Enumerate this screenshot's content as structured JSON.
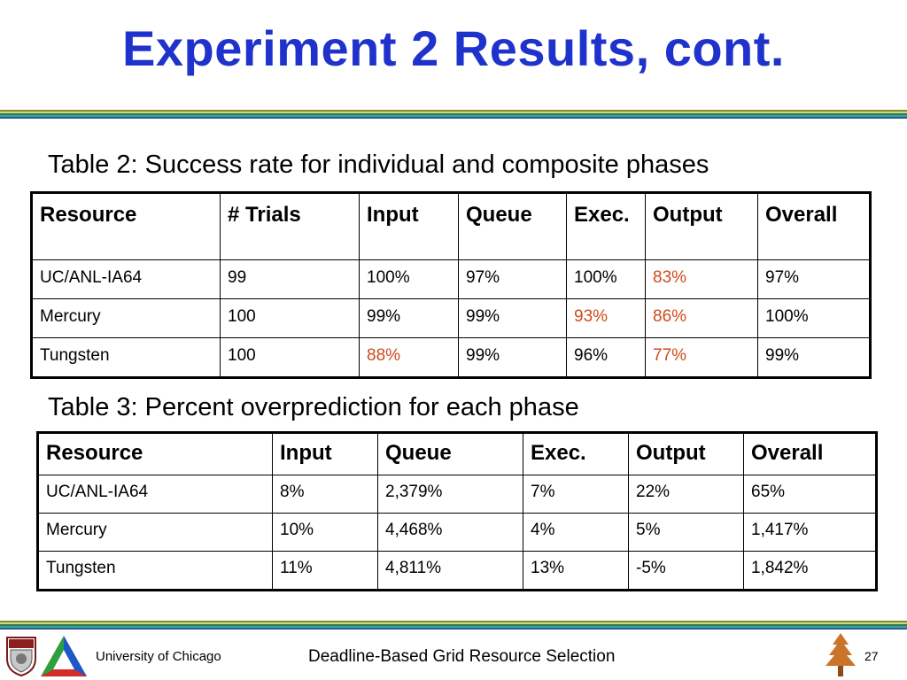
{
  "slide": {
    "title": "Experiment 2 Results, cont.",
    "page_number": "27"
  },
  "table2": {
    "caption": "Table 2: Success rate for individual and composite phases",
    "headers": [
      "Resource",
      "# Trials",
      "Input",
      "Queue",
      "Exec.",
      "Output",
      "Overall"
    ],
    "rows": [
      [
        "UC/ANL-IA64",
        "99",
        "100%",
        "97%",
        "100%",
        "83%",
        "97%"
      ],
      [
        "Mercury",
        "100",
        "99%",
        "99%",
        "93%",
        "86%",
        "100%"
      ],
      [
        "Tungsten",
        "100",
        "88%",
        "99%",
        "96%",
        "77%",
        "99%"
      ]
    ],
    "highlight_color": "#d04a1a"
  },
  "table3": {
    "caption": "Table 3: Percent overprediction for each phase",
    "headers": [
      "Resource",
      "Input",
      "Queue",
      "Exec.",
      "Output",
      "Overall"
    ],
    "rows": [
      [
        "UC/ANL-IA64",
        "8%",
        "2,379%",
        "7%",
        "22%",
        "65%"
      ],
      [
        "Mercury",
        "10%",
        "4,468%",
        "4%",
        "5%",
        "1,417%"
      ],
      [
        "Tungsten",
        "11%",
        "4,811%",
        "13%",
        "-5%",
        "1,842%"
      ]
    ]
  },
  "footer": {
    "university": "University of Chicago",
    "course_title": "Deadline-Based Grid Resource Selection",
    "logos": [
      "university-seal-icon",
      "argonne-triangle-logo-icon",
      "stanford-tree-logo-icon"
    ]
  },
  "colors": {
    "title": "#1f33cc",
    "highlight": "#d04a1a"
  }
}
